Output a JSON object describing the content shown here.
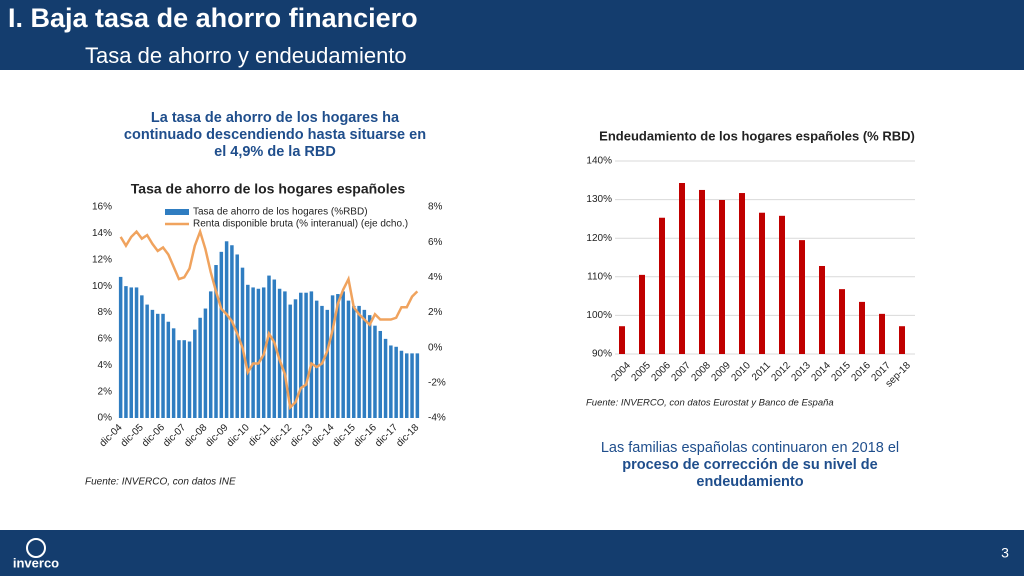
{
  "header": {
    "title": "I. Baja tasa de ahorro financiero",
    "subtitle": "Tasa de ahorro y endeudamiento"
  },
  "left_note": "La tasa de ahorro de los hogares ha continuado descendiendo hasta situarse en el 4,9% de la RBD",
  "right_note": {
    "text": "Las familias españolas continuaron en 2018 el",
    "emphasis": "proceso de corrección de su nivel de endeudamiento"
  },
  "footer": {
    "logo": "inverco",
    "page": 3
  },
  "chart_data": [
    {
      "type": "combo",
      "title": "Tasa de ahorro de los hogares españoles",
      "source": "Fuente: INVERCO, con datos INE",
      "legend": "top",
      "categories": [
        "dic-04",
        null,
        null,
        null,
        "dic-05",
        null,
        null,
        null,
        "dic-06",
        null,
        null,
        null,
        "dic-07",
        null,
        null,
        null,
        "dic-08",
        null,
        null,
        null,
        "dic-09",
        null,
        null,
        null,
        "dic-10",
        null,
        null,
        null,
        "dic-11",
        null,
        null,
        null,
        "dic-12",
        null,
        null,
        null,
        "dic-13",
        null,
        null,
        null,
        "dic-14",
        null,
        null,
        null,
        "dic-15",
        null,
        null,
        null,
        "dic-16",
        null,
        null,
        null,
        "dic-17",
        null,
        null,
        null,
        "dic-18"
      ],
      "series": [
        {
          "name": "Tasa de ahorro de los hogares (%RBD)",
          "color": "#2f7dc1",
          "kind": "bar",
          "values": [
            10.7,
            10.0,
            9.9,
            9.9,
            9.3,
            8.6,
            8.2,
            7.9,
            7.9,
            7.3,
            6.8,
            5.9,
            5.9,
            5.8,
            6.7,
            7.6,
            8.3,
            9.6,
            11.6,
            12.6,
            13.4,
            13.1,
            12.4,
            11.4,
            10.1,
            9.9,
            9.8,
            9.9,
            10.8,
            10.5,
            9.8,
            9.6,
            8.6,
            9.0,
            9.5,
            9.5,
            9.6,
            8.9,
            8.5,
            8.2,
            9.3,
            9.4,
            9.6,
            8.9,
            8.5,
            8.5,
            8.2,
            7.8,
            7.0,
            6.6,
            6.0,
            5.5,
            5.4,
            5.1,
            4.9,
            4.9,
            4.9
          ]
        },
        {
          "name": "Renta disponible bruta (% interanual) (eje dcho.)",
          "color": "#f0a35e",
          "kind": "line",
          "axis": "y2",
          "values": [
            6.3,
            5.8,
            6.3,
            6.6,
            6.2,
            6.4,
            5.9,
            5.5,
            5.7,
            5.3,
            4.6,
            3.9,
            4.0,
            4.5,
            5.8,
            6.6,
            5.6,
            4.3,
            3.2,
            2.2,
            1.9,
            1.5,
            0.8,
            0,
            -1.4,
            -0.9,
            -0.9,
            -0.4,
            0.8,
            0.3,
            -0.7,
            -1.5,
            -3.4,
            -3.1,
            -2.3,
            -2.1,
            -0.9,
            -1.1,
            -0.9,
            -0.2,
            1.0,
            2.5,
            3.3,
            3.9,
            2.3,
            1.9,
            1.6,
            1.3,
            1.9,
            1.6,
            1.6,
            1.6,
            1.7,
            2.3,
            2.3,
            2.9,
            3.2
          ]
        }
      ],
      "ylim": [
        0,
        16
      ],
      "yticks": [
        {
          "value": 0,
          "label": "0%"
        },
        {
          "value": 2,
          "label": "2%"
        },
        {
          "value": 4,
          "label": "4%"
        },
        {
          "value": 6,
          "label": "6%"
        },
        {
          "value": 8,
          "label": "8%"
        },
        {
          "value": 10,
          "label": "10%"
        },
        {
          "value": 12,
          "label": "12%"
        },
        {
          "value": 14,
          "label": "14%"
        },
        {
          "value": 16,
          "label": "16%"
        }
      ],
      "y2lim": [
        -4,
        8
      ],
      "y2ticks": [
        {
          "value": -4,
          "label": "-4%"
        },
        {
          "value": -2,
          "label": "-2%"
        },
        {
          "value": 0,
          "label": "0%"
        },
        {
          "value": 2,
          "label": "2%"
        },
        {
          "value": 4,
          "label": "4%"
        },
        {
          "value": 6,
          "label": "6%"
        },
        {
          "value": 8,
          "label": "8%"
        }
      ],
      "grid": false
    },
    {
      "type": "bar",
      "title": "Endeudamiento de los hogares españoles (% RBD)",
      "source": "Fuente: INVERCO, con datos Eurostat y Banco de España",
      "categories": [
        "2004",
        "2005",
        "2006",
        "2007",
        "2008",
        "2009",
        "2010",
        "2011",
        "2012",
        "2013",
        "2014",
        "2015",
        "2016",
        "2017",
        "sep-18"
      ],
      "values": [
        97.2,
        110.5,
        125.3,
        134.3,
        132.5,
        129.9,
        131.7,
        126.6,
        125.8,
        119.5,
        112.8,
        106.8,
        103.5,
        100.4,
        97.2
      ],
      "color": "#c00000",
      "ylim": [
        90,
        140
      ],
      "yticks": [
        {
          "value": 90,
          "label": "90%"
        },
        {
          "value": 100,
          "label": "100%"
        },
        {
          "value": 110,
          "label": "110%"
        },
        {
          "value": 120,
          "label": "120%"
        },
        {
          "value": 130,
          "label": "130%"
        },
        {
          "value": 140,
          "label": "140%"
        }
      ],
      "grid": true
    }
  ]
}
